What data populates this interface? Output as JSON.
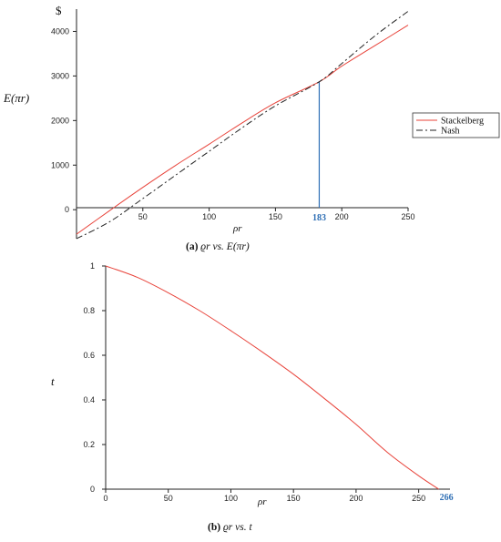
{
  "chart_data": [
    {
      "type": "line",
      "caption": {
        "tag": "(a)",
        "text": "ϱr vs. E(πr)"
      },
      "unit": "$",
      "ylabel": "E(πr)",
      "xlabel": "ρr",
      "xlim": [
        0,
        250
      ],
      "ylim": [
        -650,
        4500
      ],
      "xticks": [
        50,
        100,
        150,
        200,
        250
      ],
      "yticks": [
        0,
        1000,
        2000,
        3000,
        4000
      ],
      "marker": {
        "x": 183,
        "label": "183",
        "y": 2870,
        "color": "#2f6fb5"
      },
      "legend": "right",
      "series": [
        {
          "name": "Stackelberg",
          "color": "#e8433a",
          "dash": "solid",
          "x": [
            0,
            25,
            50,
            75,
            100,
            125,
            150,
            183,
            200,
            225,
            250
          ],
          "y": [
            -550,
            -20,
            500,
            1000,
            1470,
            1950,
            2400,
            2870,
            3220,
            3680,
            4140
          ]
        },
        {
          "name": "Nash",
          "color": "#222222",
          "dash": "dashdot",
          "x": [
            0,
            25,
            50,
            75,
            100,
            125,
            150,
            183,
            200,
            225,
            250
          ],
          "y": [
            -650,
            -270,
            250,
            780,
            1310,
            1840,
            2330,
            2870,
            3280,
            3900,
            4450
          ]
        }
      ]
    },
    {
      "type": "line",
      "caption": {
        "tag": "(b)",
        "text": "ϱr vs. t"
      },
      "ylabel": "t",
      "xlabel": "ρr",
      "xlim": [
        0,
        275
      ],
      "ylim": [
        0,
        1
      ],
      "xticks": [
        0,
        50,
        100,
        150,
        200,
        250
      ],
      "yticks": [
        0,
        0.2,
        0.4,
        0.6,
        0.8,
        1
      ],
      "marker": {
        "x": 266,
        "label": "266",
        "color": "#2f6fb5"
      },
      "series": [
        {
          "color": "#e8433a",
          "dash": "solid",
          "x": [
            0,
            25,
            50,
            75,
            100,
            125,
            150,
            175,
            200,
            225,
            250,
            266
          ],
          "y": [
            1,
            0.95,
            0.88,
            0.8,
            0.71,
            0.615,
            0.515,
            0.405,
            0.29,
            0.165,
            0.06,
            0
          ]
        }
      ]
    }
  ]
}
